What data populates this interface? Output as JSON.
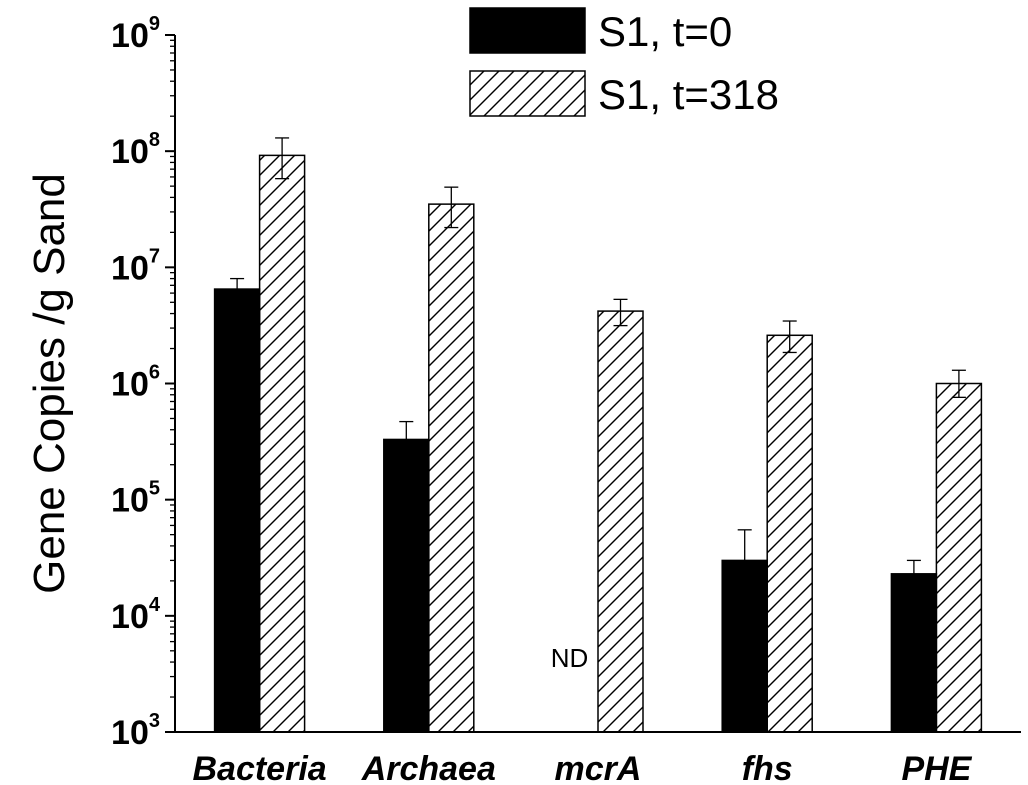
{
  "chart_data": {
    "type": "bar",
    "title": "",
    "xlabel": "",
    "ylabel": "Gene Copies /g Sand",
    "yscale": "log",
    "ylim": [
      1000,
      1000000000
    ],
    "y_tick_base": "10",
    "y_tick_exponents": [
      "3",
      "4",
      "5",
      "6",
      "7",
      "8",
      "9"
    ],
    "categories": [
      "Bacteria",
      "Archaea",
      "mcrA",
      "fhs",
      "PHE"
    ],
    "series": [
      {
        "name": "S1, t=0",
        "fill": "solid",
        "color": "#000000",
        "values": [
          6500000,
          330000,
          null,
          30000,
          23000
        ],
        "err_high": [
          8000000,
          470000,
          null,
          55000,
          30000
        ],
        "err_low": [
          5500000,
          250000,
          null,
          20000,
          17000
        ]
      },
      {
        "name": "S1, t=318",
        "fill": "hatched",
        "color": "#000000",
        "values": [
          92000000,
          35000000,
          4200000,
          2600000,
          1000000
        ],
        "err_high": [
          130000000,
          49000000,
          5300000,
          3450000,
          1300000
        ],
        "err_low": [
          58000000,
          22000000,
          3150000,
          1850000,
          760000
        ]
      }
    ],
    "annotations": [
      {
        "category": "mcrA",
        "series": "S1, t=0",
        "text": "ND"
      }
    ],
    "legend": "top-right",
    "grid": false
  }
}
